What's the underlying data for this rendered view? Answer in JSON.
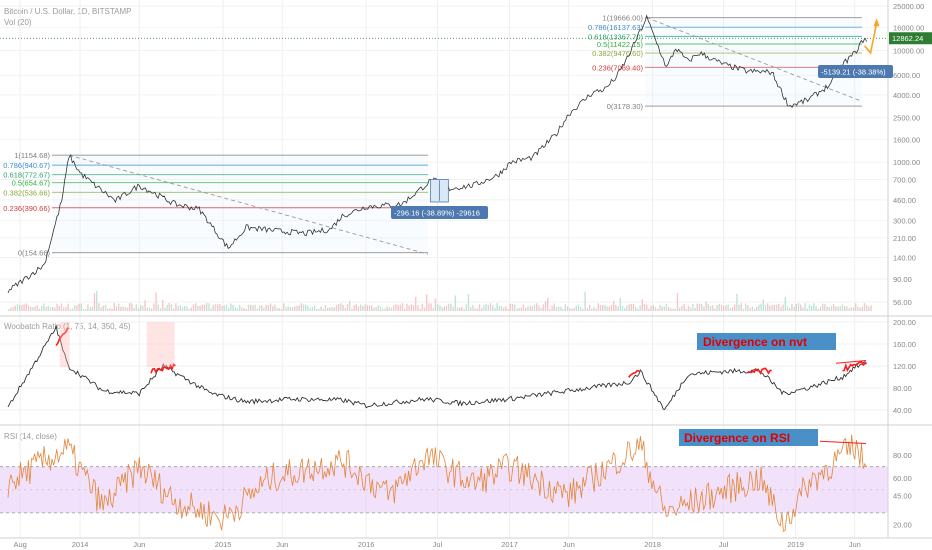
{
  "header": {
    "symbol_title": "Bitcoin / U.S. Dollar, 1D, BITSTAMP",
    "volume_label": "Vol (20)"
  },
  "colors": {
    "price_line": "#333333",
    "nvt_red": "#ff1a1a",
    "rsi_line": "#e3863a",
    "rsi_band": "#e8c8f5",
    "annotation_box": "#4d79b0",
    "callout_fill": "#4a90c8",
    "callout_text": "#e00000",
    "current_price_tag": "#2e7d32",
    "projection": "#f5a623"
  },
  "chart_data": [
    {
      "type": "line",
      "title": "",
      "y_scale": "log",
      "yaxis_tick_labels": [
        "25000.00",
        "16000.00",
        "10000.00",
        "6000.00",
        "4000.00",
        "2500.00",
        "1600.00",
        "1000.00",
        "700.00",
        "460.00",
        "300.00",
        "210.00",
        "140.00",
        "90.00",
        "56.00"
      ],
      "current_price_label": "12862.24",
      "x_tick_labels": [
        "Aug",
        "2014",
        "Jun",
        "2015",
        "Jun",
        "2016",
        "Jul",
        "2017",
        "Jun",
        "2018",
        "Jul",
        "2019",
        "Jun"
      ],
      "series": [
        {
          "x": [
            "2013-07",
            "2013-10",
            "2013-11-15",
            "2013-12-04",
            "2014-01",
            "2014-02",
            "2014-04",
            "2014-06",
            "2014-09",
            "2014-11",
            "2015-01-14",
            "2015-03",
            "2015-06",
            "2015-08",
            "2015-10",
            "2015-11",
            "2016-01",
            "2016-04",
            "2016-06-18",
            "2016-08",
            "2016-10",
            "2016-12",
            "2017-01-05",
            "2017-03",
            "2017-05",
            "2017-06",
            "2017-08",
            "2017-09",
            "2017-10",
            "2017-11",
            "2017-12-17",
            "2018-02-06",
            "2018-03",
            "2018-04",
            "2018-05",
            "2018-07",
            "2018-09",
            "2018-11",
            "2018-12-15",
            "2019-02",
            "2019-04",
            "2019-05",
            "2019-06",
            "2019-06-26",
            "2019-07"
          ],
          "y": [
            70,
            120,
            450,
            1154,
            800,
            650,
            450,
            620,
            420,
            380,
            170,
            260,
            240,
            230,
            250,
            330,
            400,
            420,
            700,
            580,
            620,
            760,
            1000,
            1100,
            1800,
            2700,
            4200,
            4500,
            5800,
            9000,
            19666,
            7000,
            10500,
            8000,
            9500,
            7500,
            6500,
            6400,
            3178,
            3600,
            5000,
            7500,
            9500,
            13000,
            12000
          ]
        }
      ],
      "fib_levels_2013": [
        {
          "ratio": "1",
          "price": "1154.68"
        },
        {
          "ratio": "0.786",
          "price": "940.67"
        },
        {
          "ratio": "0.618",
          "price": "772.67"
        },
        {
          "ratio": "0.5",
          "price": "654.67"
        },
        {
          "ratio": "0.382",
          "price": "536.66"
        },
        {
          "ratio": "0.236",
          "price": "390.66"
        },
        {
          "ratio": "0",
          "price": "154.66"
        }
      ],
      "fib_levels_2017": [
        {
          "ratio": "1",
          "price": "19666.00"
        },
        {
          "ratio": "0.786",
          "price": "16137.63"
        },
        {
          "ratio": "0.618",
          "price": "13367.70"
        },
        {
          "ratio": "0.5",
          "price": "11422.15"
        },
        {
          "ratio": "0.382",
          "price": "9476.60"
        },
        {
          "ratio": "0.236",
          "price": "7069.40"
        },
        {
          "ratio": "0",
          "price": "3178.30"
        }
      ],
      "annotations": [
        {
          "text": "-296.16 (-38.89%) -29616"
        },
        {
          "text": "-5139.21 (-38.38%)"
        }
      ]
    },
    {
      "type": "line",
      "title": "",
      "indicator_label": "Woobatch Ratio (1, 75, 14, 350, 45)",
      "yaxis_tick_labels": [
        "200.00",
        "160.00",
        "120.00",
        "80.00",
        "40.00"
      ],
      "callout": "Divergence on nvt",
      "x": [
        "2013-07",
        "2013-11",
        "2013-12",
        "2014-03",
        "2014-06",
        "2014-08",
        "2014-12",
        "2015-03",
        "2015-07",
        "2015-11",
        "2016-01",
        "2016-06",
        "2016-09",
        "2017-01",
        "2017-06",
        "2017-11",
        "2017-12",
        "2018-02",
        "2018-04",
        "2018-07",
        "2018-10",
        "2018-12",
        "2019-02",
        "2019-05",
        "2019-06",
        "2019-07"
      ],
      "y": [
        45,
        190,
        120,
        75,
        70,
        120,
        70,
        55,
        60,
        58,
        48,
        60,
        52,
        60,
        75,
        90,
        110,
        40,
        105,
        110,
        112,
        70,
        80,
        100,
        118,
        125
      ]
    },
    {
      "type": "line",
      "title": "",
      "indicator_label": "RSI (14, close)",
      "yaxis_tick_labels": [
        "80.00",
        "60.00",
        "45.00",
        "20.00"
      ],
      "callout": "Divergence on RSI",
      "band": [
        30,
        70
      ],
      "x": [
        "2013-07",
        "2013-10",
        "2013-12",
        "2014-03",
        "2014-06",
        "2014-09",
        "2015-01",
        "2015-05",
        "2015-11",
        "2016-03",
        "2016-06",
        "2016-10",
        "2017-01",
        "2017-06",
        "2017-10",
        "2017-12",
        "2018-02",
        "2018-06",
        "2018-10",
        "2018-12",
        "2019-02",
        "2019-05",
        "2019-06",
        "2019-07"
      ],
      "y": [
        55,
        75,
        85,
        35,
        70,
        40,
        25,
        60,
        75,
        45,
        80,
        55,
        70,
        45,
        75,
        88,
        30,
        45,
        60,
        20,
        55,
        80,
        88,
        70
      ]
    }
  ]
}
